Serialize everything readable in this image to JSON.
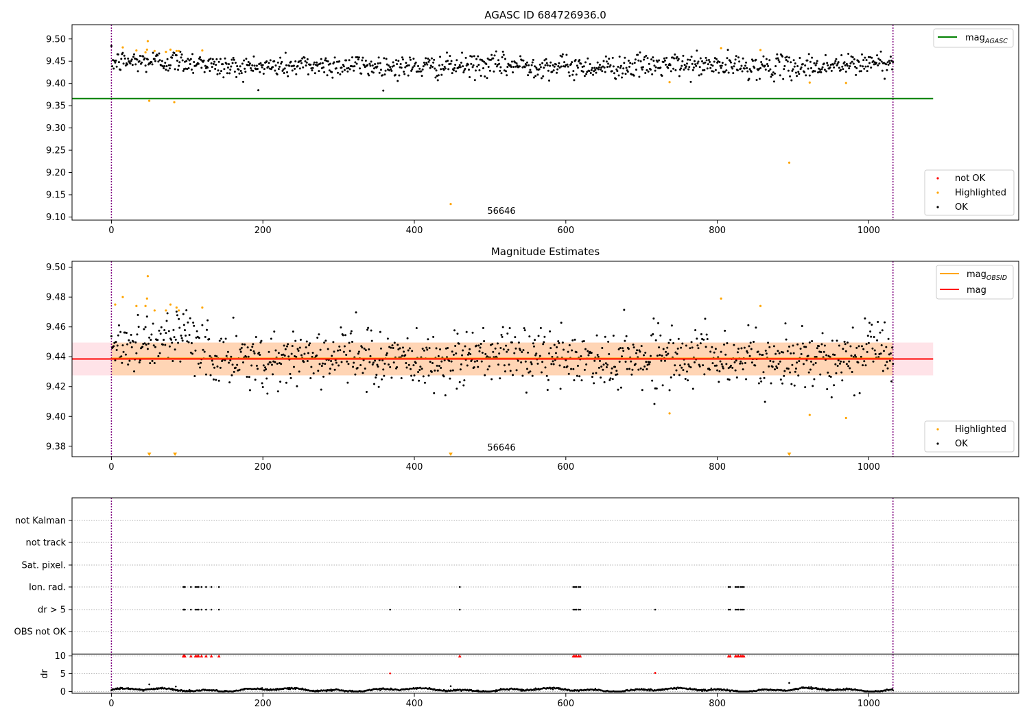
{
  "chart_data": [
    {
      "type": "scatter",
      "title": "AGASC ID 684726936.0",
      "annotation": "56646",
      "xlim": [
        -52,
        1198
      ],
      "ylim": [
        9.093,
        9.532
      ],
      "xticks": [
        0,
        200,
        400,
        600,
        800,
        1000
      ],
      "xtick_labels": [
        "0",
        "200",
        "400",
        "600",
        "800",
        "1000"
      ],
      "yticks": [
        9.1,
        9.15,
        9.2,
        9.25,
        9.3,
        9.35,
        9.4,
        9.45,
        9.5
      ],
      "ytick_labels": [
        "9.10",
        "9.15",
        "9.20",
        "9.25",
        "9.30",
        "9.35",
        "9.40",
        "9.45",
        "9.50"
      ],
      "vlines": [
        0,
        1032
      ],
      "hline": {
        "y": 9.366,
        "x_end": 1085,
        "color": "#008000"
      },
      "ok_series": {
        "x_range": [
          0,
          1032
        ],
        "center": 9.439,
        "spread": 0.013,
        "color": "#000000"
      },
      "highlighted_points": [
        [
          15,
          9.481
        ],
        [
          33,
          9.474
        ],
        [
          45,
          9.47
        ],
        [
          47,
          9.476
        ],
        [
          48,
          9.495
        ],
        [
          50,
          9.361
        ],
        [
          57,
          9.473
        ],
        [
          72,
          9.471
        ],
        [
          78,
          9.476
        ],
        [
          83,
          9.358
        ],
        [
          86,
          9.473
        ],
        [
          89,
          9.473
        ],
        [
          120,
          9.474
        ],
        [
          448,
          9.129
        ],
        [
          737,
          9.403
        ],
        [
          805,
          9.479
        ],
        [
          857,
          9.475
        ],
        [
          895,
          9.222
        ],
        [
          922,
          9.402
        ],
        [
          970,
          9.401
        ]
      ],
      "legend_line": {
        "label": "mag",
        "subscript": "AGASC"
      },
      "legend_points": [
        {
          "label": "not OK",
          "color": "#ff0000"
        },
        {
          "label": "Highlighted",
          "color": "#ffa500"
        },
        {
          "label": "OK",
          "color": "#000000"
        }
      ]
    },
    {
      "type": "scatter",
      "title": "Magnitude Estimates",
      "annotation": "56646",
      "xlim": [
        -52,
        1198
      ],
      "ylim": [
        9.373,
        9.504
      ],
      "xticks": [
        0,
        200,
        400,
        600,
        800,
        1000
      ],
      "xtick_labels": [
        "0",
        "200",
        "400",
        "600",
        "800",
        "1000"
      ],
      "yticks": [
        9.38,
        9.4,
        9.42,
        9.44,
        9.46,
        9.48,
        9.5
      ],
      "ytick_labels": [
        "9.38",
        "9.40",
        "9.42",
        "9.44",
        "9.46",
        "9.48",
        "9.50"
      ],
      "vlines": [
        0,
        1032
      ],
      "mag_line": {
        "y": 9.4385,
        "x_end": 1085,
        "color": "#ff0000"
      },
      "band": {
        "y_low": 9.4275,
        "y_high": 9.4495,
        "x_end": 1085
      },
      "ok_series": {
        "x_range": [
          0,
          1032
        ],
        "center": 9.439,
        "spread": 0.0095,
        "color": "#000000"
      },
      "highlighted_points": [
        [
          5,
          9.475
        ],
        [
          15,
          9.48
        ],
        [
          33,
          9.474
        ],
        [
          45,
          9.474
        ],
        [
          47,
          9.479
        ],
        [
          48,
          9.494
        ],
        [
          57,
          9.471
        ],
        [
          72,
          9.471
        ],
        [
          78,
          9.475
        ],
        [
          86,
          9.473
        ],
        [
          89,
          9.471
        ],
        [
          120,
          9.473
        ],
        [
          737,
          9.402
        ],
        [
          805,
          9.479
        ],
        [
          857,
          9.474
        ],
        [
          922,
          9.401
        ],
        [
          970,
          9.399
        ]
      ],
      "off_scale_markers_x": [
        50,
        84,
        448,
        895
      ],
      "legend_lines": [
        {
          "label": "mag",
          "subscript": "OBSID",
          "color": "#ffa500"
        },
        {
          "label": "mag",
          "subscript": "",
          "color": "#ff0000"
        }
      ],
      "legend_points": [
        {
          "label": "Highlighted",
          "color": "#ffa500"
        },
        {
          "label": "OK",
          "color": "#000000"
        }
      ]
    },
    {
      "type": "scatter",
      "flags_panel": {
        "categories": [
          "not Kalman",
          "not track",
          "Sat. pixel.",
          "Ion. rad.",
          "dr > 5",
          "OBS not OK"
        ],
        "ion_rad_x": [
          95,
          96,
          97,
          105,
          111,
          113,
          115,
          119,
          125,
          132,
          142,
          460,
          610,
          612,
          614,
          617,
          619,
          815,
          817,
          824,
          826,
          828,
          831,
          833,
          835
        ],
        "dr5_x": [
          95,
          96,
          97,
          105,
          111,
          113,
          115,
          119,
          125,
          132,
          142,
          368,
          460,
          610,
          612,
          614,
          617,
          619,
          718,
          815,
          817,
          824,
          826,
          828,
          831,
          833,
          835
        ]
      },
      "dr_panel": {
        "ylabel": "dr",
        "yticks": [
          0,
          5,
          10
        ],
        "ytick_labels": [
          "0",
          "5",
          "10"
        ],
        "ylim": [
          -0.5,
          10.5
        ],
        "capped_x": [
          95,
          96,
          97,
          105,
          111,
          113,
          115,
          119,
          125,
          132,
          142,
          460,
          610,
          612,
          614,
          617,
          619,
          815,
          817,
          824,
          826,
          828,
          831,
          833,
          835
        ],
        "red_points": [
          [
            368,
            5.1
          ],
          [
            718,
            5.2
          ]
        ],
        "outlier_points": [
          [
            50,
            2.0
          ],
          [
            85,
            1.4
          ],
          [
            448,
            1.5
          ],
          [
            895,
            2.4
          ]
        ]
      },
      "xlim": [
        -52,
        1198
      ],
      "xticks": [
        0,
        200,
        400,
        600,
        800,
        1000
      ],
      "xtick_labels": [
        "0",
        "200",
        "400",
        "600",
        "800",
        "1000"
      ],
      "vlines": [
        0,
        1032
      ]
    }
  ]
}
